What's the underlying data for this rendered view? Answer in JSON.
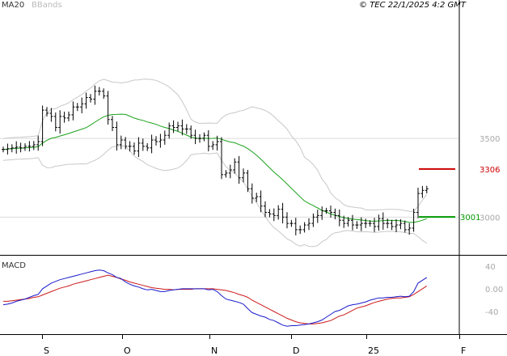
{
  "copyright": "© TEC 22/1/2025 4:2 GMT",
  "legend": {
    "ma_label": "MA20",
    "bbands_label": "BBands",
    "macd_label": "MACD"
  },
  "colors": {
    "bars": "#000000",
    "ma": "#1aa01a",
    "bbands": "#c8c8c8",
    "macd": "#1a1acc",
    "signal": "#cc1a1a",
    "resistance": "#cc0000",
    "support": "#009900",
    "grid": "#dcdcdc",
    "frame": "#000000",
    "tick_text": "#a8a8a8"
  },
  "chart_data": [
    {
      "type": "ohlc",
      "title": "",
      "y_ticks": [
        3000,
        3500
      ],
      "y_tick_labels": [
        "3000",
        "3500"
      ],
      "ylim": [
        2760,
        4380
      ],
      "grid": true,
      "overlays": [
        "MA20",
        "BBands"
      ],
      "x_tick_labels": [
        "S",
        "O",
        "N",
        "D",
        "25",
        "F"
      ],
      "levels": [
        {
          "name": "resistance",
          "value": 3306,
          "label": "3306"
        },
        {
          "name": "support",
          "value": 3001,
          "label": "3001"
        }
      ],
      "closes": [
        3430,
        3435,
        3440,
        3445,
        3440,
        3450,
        3450,
        3460,
        3480,
        3680,
        3660,
        3640,
        3570,
        3640,
        3630,
        3650,
        3700,
        3700,
        3720,
        3760,
        3750,
        3800,
        3800,
        3770,
        3620,
        3570,
        3460,
        3490,
        3450,
        3450,
        3420,
        3470,
        3450,
        3440,
        3490,
        3480,
        3490,
        3520,
        3580,
        3570,
        3580,
        3560,
        3560,
        3520,
        3500,
        3500,
        3520,
        3450,
        3460,
        3480,
        3270,
        3280,
        3300,
        3350,
        3250,
        3280,
        3180,
        3120,
        3130,
        3070,
        3030,
        3020,
        3010,
        3050,
        3000,
        2960,
        2960,
        2920,
        2920,
        2950,
        2960,
        3000,
        3010,
        3040,
        3040,
        3030,
        3010,
        2980,
        2960,
        2980,
        2950,
        2950,
        2960,
        2960,
        2960,
        2940,
        2990,
        2960,
        2960,
        2940,
        2950,
        2960,
        2920,
        2930,
        3030,
        3150,
        3170,
        3180
      ]
    },
    {
      "type": "line",
      "title": "MACD",
      "y_ticks": [
        40,
        0,
        -40
      ],
      "y_tick_labels": [
        "40",
        "0.00",
        "-40"
      ],
      "ylim": [
        -80,
        57
      ],
      "series": [
        {
          "name": "MACD"
        },
        {
          "name": "Signal"
        }
      ],
      "macd_values": [
        -28,
        -27,
        -25,
        -22,
        -20,
        -18,
        -15,
        -12,
        -10,
        0,
        5,
        10,
        13,
        16,
        18,
        20,
        22,
        24,
        26,
        28,
        30,
        32,
        33,
        32,
        28,
        25,
        20,
        18,
        12,
        8,
        5,
        3,
        0,
        -2,
        -1,
        -3,
        -5,
        -5,
        -3,
        -2,
        -1,
        0,
        0,
        0,
        0,
        0,
        0,
        -2,
        -1,
        -5,
        -12,
        -18,
        -20,
        -22,
        -24,
        -27,
        -35,
        -42,
        -45,
        -48,
        -50,
        -54,
        -56,
        -60,
        -64,
        -66,
        -65,
        -65,
        -64,
        -63,
        -62,
        -60,
        -58,
        -55,
        -50,
        -45,
        -40,
        -38,
        -34,
        -30,
        -28,
        -27,
        -25,
        -23,
        -20,
        -18,
        -16,
        -16,
        -15,
        -15,
        -14,
        -13,
        -14,
        -13,
        -5,
        10,
        15,
        20
      ],
      "signal_values": [
        -22,
        -22,
        -21,
        -20,
        -19,
        -18,
        -17,
        -15,
        -14,
        -11,
        -8,
        -5,
        -2,
        1,
        3,
        5,
        8,
        10,
        12,
        14,
        16,
        18,
        20,
        22,
        24,
        22,
        20,
        17,
        15,
        12,
        10,
        8,
        6,
        4,
        2,
        1,
        0,
        -1,
        -1,
        -2,
        -1,
        -1,
        -1,
        -1,
        0,
        0,
        0,
        0,
        0,
        -1,
        -2,
        -3,
        -5,
        -7,
        -10,
        -12,
        -15,
        -20,
        -24,
        -28,
        -32,
        -36,
        -40,
        -44,
        -48,
        -52,
        -55,
        -58,
        -60,
        -61,
        -62,
        -62,
        -61,
        -60,
        -58,
        -56,
        -52,
        -48,
        -46,
        -42,
        -38,
        -34,
        -32,
        -30,
        -27,
        -24,
        -22,
        -20,
        -18,
        -17,
        -16,
        -16,
        -15,
        -14,
        -10,
        -5,
        0,
        5
      ]
    }
  ]
}
